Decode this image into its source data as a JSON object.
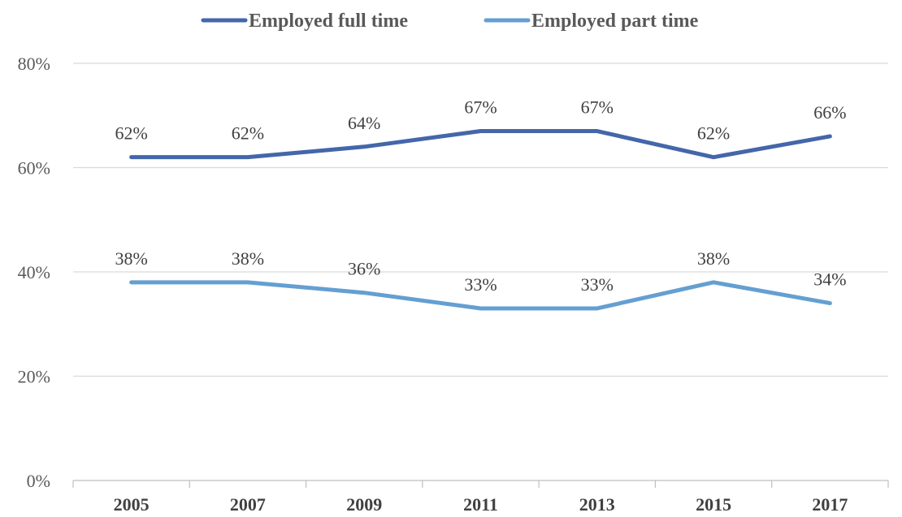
{
  "chart_data": {
    "type": "line",
    "title": "",
    "xlabel": "",
    "ylabel": "",
    "categories": [
      "2005",
      "2007",
      "2009",
      "2011",
      "2013",
      "2015",
      "2017"
    ],
    "series": [
      {
        "name": "Employed full time",
        "color": "#4466AA",
        "values": [
          62,
          62,
          64,
          67,
          67,
          62,
          66
        ],
        "labels": [
          "62%",
          "62%",
          "64%",
          "67%",
          "67%",
          "62%",
          "66%"
        ]
      },
      {
        "name": "Employed part time",
        "color": "#649FD1",
        "values": [
          38,
          38,
          36,
          33,
          33,
          38,
          34
        ],
        "labels": [
          "38%",
          "38%",
          "36%",
          "33%",
          "33%",
          "38%",
          "34%"
        ]
      }
    ],
    "ylim": [
      0,
      80
    ],
    "yticks": [
      0,
      20,
      40,
      60,
      80
    ],
    "ytick_labels": [
      "0%",
      "20%",
      "40%",
      "60%",
      "80%"
    ],
    "grid": true,
    "gridline_color": "#D9D9D9",
    "legend_position": "top"
  }
}
